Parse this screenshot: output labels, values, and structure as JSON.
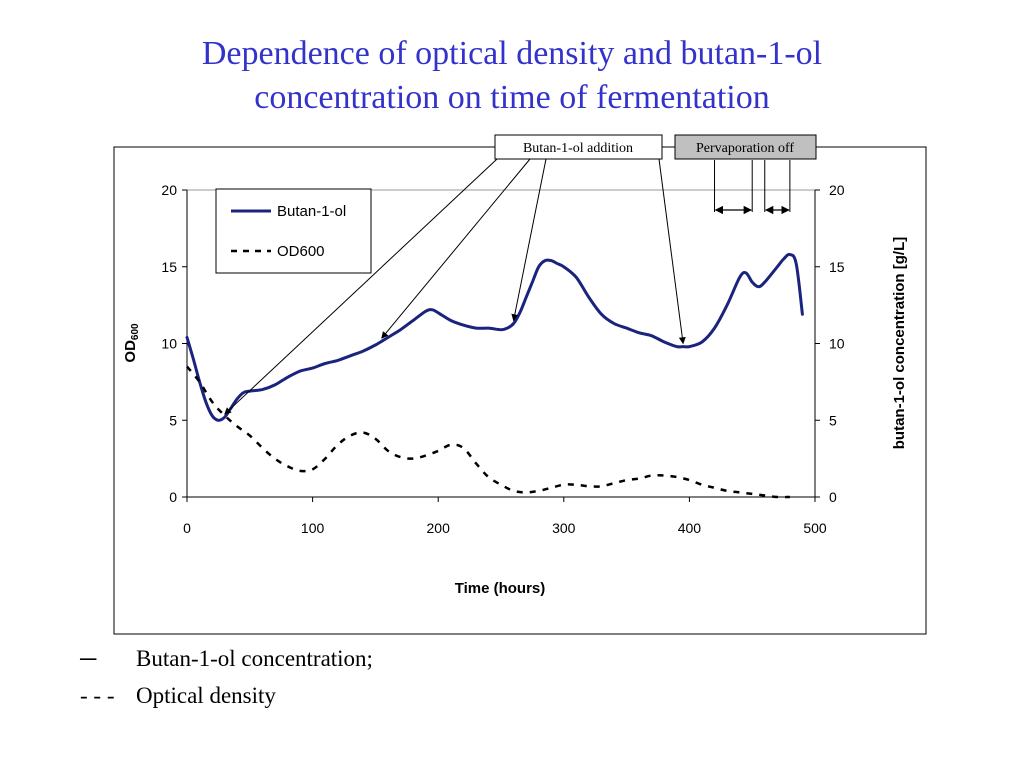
{
  "slide": {
    "title_line1": "Dependence of optical density and butan-1-ol",
    "title_line2": "concentration on time of fermentation",
    "title_color": "#3333cc"
  },
  "notes": [
    {
      "symbol": "─",
      "text": "Butan-1-ol concentration;"
    },
    {
      "symbol": "- - -",
      "text": "Optical density"
    }
  ],
  "callouts": {
    "addition": "Butan-1-ol addition",
    "pervaporation": "Pervaporation off"
  },
  "chart_data": {
    "type": "line",
    "xlabel": "Time (hours)",
    "ylabel_left": "OD",
    "ylabel_left_sub": "600",
    "ylabel_right": "butan-1-ol concentration [g/L]",
    "xlim": [
      0,
      500
    ],
    "ylim_left": [
      0,
      20
    ],
    "ylim_right": [
      0,
      20
    ],
    "xticks": [
      0,
      100,
      200,
      300,
      400,
      500
    ],
    "yticks": [
      0,
      5,
      10,
      15,
      20
    ],
    "legend_placement": "top-left",
    "grid": false,
    "series": [
      {
        "name": "Butan-1-ol",
        "style": "solid",
        "color": "#1a237e",
        "x": [
          0,
          5,
          10,
          15,
          20,
          25,
          30,
          35,
          40,
          45,
          50,
          60,
          70,
          80,
          90,
          100,
          110,
          120,
          130,
          140,
          150,
          160,
          170,
          180,
          190,
          195,
          200,
          210,
          220,
          230,
          240,
          250,
          255,
          260,
          265,
          270,
          275,
          280,
          285,
          290,
          295,
          300,
          310,
          320,
          330,
          340,
          350,
          360,
          370,
          380,
          390,
          395,
          400,
          410,
          420,
          430,
          440,
          445,
          450,
          455,
          460,
          470,
          475,
          480,
          485,
          490
        ],
        "y": [
          10.4,
          9.0,
          7.5,
          6.2,
          5.3,
          5.0,
          5.2,
          5.8,
          6.4,
          6.8,
          6.9,
          7.0,
          7.3,
          7.8,
          8.2,
          8.4,
          8.7,
          8.9,
          9.2,
          9.5,
          9.9,
          10.4,
          10.9,
          11.5,
          12.1,
          12.2,
          12.0,
          11.5,
          11.2,
          11.0,
          11.0,
          10.9,
          11.0,
          11.3,
          12.0,
          13.0,
          14.0,
          15.0,
          15.4,
          15.4,
          15.2,
          15.0,
          14.3,
          13.0,
          11.9,
          11.3,
          11.0,
          10.7,
          10.5,
          10.1,
          9.8,
          9.8,
          9.8,
          10.1,
          11.0,
          12.5,
          14.3,
          14.6,
          14.0,
          13.7,
          14.0,
          15.0,
          15.5,
          15.8,
          15.2,
          11.9
        ]
      },
      {
        "name": "OD600",
        "style": "dashed",
        "color": "#000000",
        "x": [
          0,
          10,
          20,
          30,
          40,
          50,
          60,
          70,
          80,
          90,
          100,
          110,
          120,
          130,
          140,
          150,
          160,
          170,
          180,
          190,
          200,
          210,
          220,
          230,
          240,
          250,
          260,
          270,
          280,
          290,
          300,
          310,
          320,
          330,
          340,
          350,
          360,
          370,
          380,
          390,
          400,
          410,
          420,
          430,
          440,
          450,
          460,
          470,
          480
        ],
        "y": [
          8.5,
          7.5,
          6.2,
          5.3,
          4.6,
          4.0,
          3.2,
          2.5,
          2.0,
          1.7,
          1.8,
          2.5,
          3.4,
          4.0,
          4.2,
          3.8,
          3.0,
          2.6,
          2.5,
          2.7,
          3.0,
          3.4,
          3.2,
          2.2,
          1.3,
          0.8,
          0.4,
          0.3,
          0.4,
          0.6,
          0.8,
          0.8,
          0.7,
          0.7,
          0.9,
          1.1,
          1.2,
          1.4,
          1.4,
          1.3,
          1.1,
          0.8,
          0.6,
          0.4,
          0.3,
          0.2,
          0.1,
          0.0,
          0.0
        ]
      }
    ],
    "addition_times": [
      30,
      155,
      260,
      395
    ],
    "pervaporation_off_intervals": [
      [
        420,
        450
      ],
      [
        460,
        480
      ]
    ]
  }
}
